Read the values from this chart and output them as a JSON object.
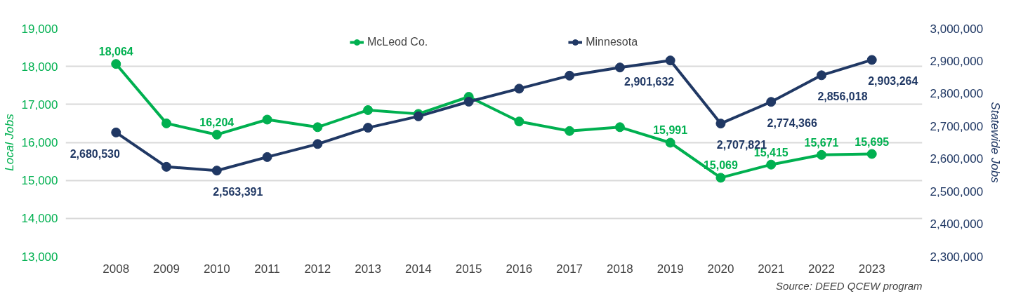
{
  "chart_data": {
    "type": "line",
    "categories": [
      "2008",
      "2009",
      "2010",
      "2011",
      "2012",
      "2013",
      "2014",
      "2015",
      "2016",
      "2017",
      "2018",
      "2019",
      "2020",
      "2021",
      "2022",
      "2023"
    ],
    "series": [
      {
        "name": "McLeod Co.",
        "color": "#00b050",
        "values": [
          18064,
          16500,
          16204,
          16600,
          16400,
          16850,
          16750,
          17200,
          16550,
          16300,
          16400,
          15991,
          15069,
          15415,
          15671,
          15695
        ],
        "value_labels": [
          "18,064",
          null,
          "16,204",
          null,
          null,
          null,
          null,
          null,
          null,
          null,
          null,
          "15,991",
          "15,069",
          "15,415",
          "15,671",
          "15,695"
        ]
      },
      {
        "name": "Minnesota",
        "color": "#203864",
        "axis": "y2",
        "values": [
          2680530,
          2575000,
          2563391,
          2605000,
          2645000,
          2695000,
          2730000,
          2775000,
          2815000,
          2855000,
          2880000,
          2901632,
          2707821,
          2774366,
          2856018,
          2903264
        ],
        "value_labels": [
          "2,680,530",
          null,
          "2,563,391",
          null,
          null,
          null,
          null,
          null,
          null,
          null,
          null,
          "2,901,632",
          "2,707,821",
          "2,774,366",
          "2,856,018",
          "2,903,264"
        ]
      }
    ],
    "ylabel": "Local Jobs",
    "y2label": "Statewide Jobs",
    "ylim": [
      13000,
      19000
    ],
    "yticks": [
      {
        "value": 13000,
        "label": "13,000"
      },
      {
        "value": 14000,
        "label": "14,000"
      },
      {
        "value": 15000,
        "label": "15,000"
      },
      {
        "value": 16000,
        "label": "16,000"
      },
      {
        "value": 17000,
        "label": "17,000"
      },
      {
        "value": 18000,
        "label": "18,000"
      },
      {
        "value": 19000,
        "label": "19,000"
      }
    ],
    "y2lim": [
      2300000,
      3000000
    ],
    "y2ticks": [
      {
        "value": 2300000,
        "label": "2,300,000"
      },
      {
        "value": 2400000,
        "label": "2,400,000"
      },
      {
        "value": 2500000,
        "label": "2,500,000"
      },
      {
        "value": 2600000,
        "label": "2,600,000"
      },
      {
        "value": 2700000,
        "label": "2,700,000"
      },
      {
        "value": 2800000,
        "label": "2,800,000"
      },
      {
        "value": 2900000,
        "label": "2,900,000"
      },
      {
        "value": 3000000,
        "label": "3,000,000"
      }
    ],
    "grid": "y",
    "legend": "top",
    "marker": "circle",
    "line_style": "solid",
    "annotations": [
      "Source: DEED QCEW program"
    ]
  }
}
